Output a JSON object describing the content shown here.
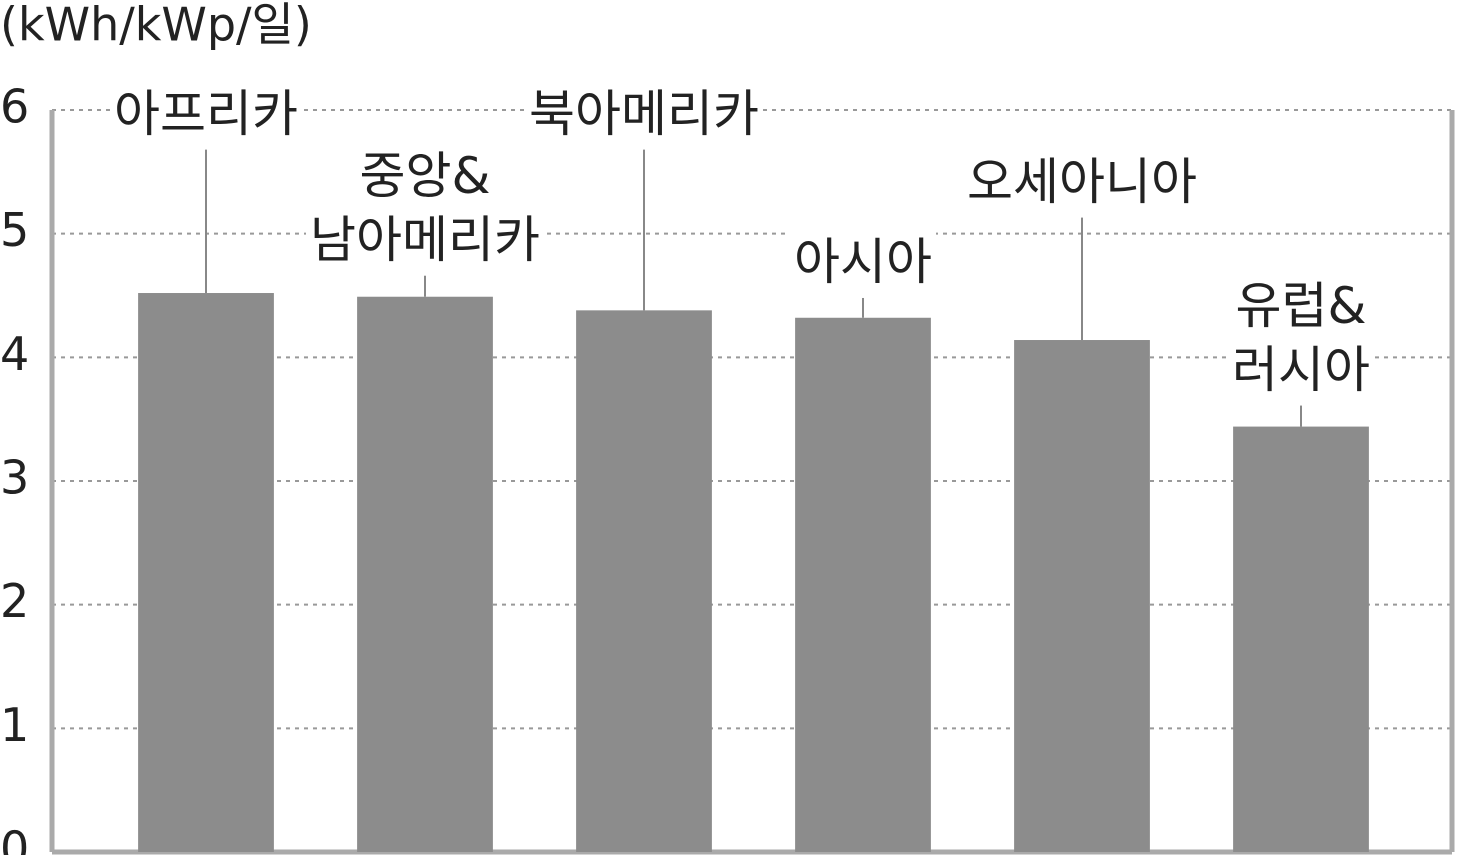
{
  "chart_data": {
    "type": "bar",
    "y_axis_label": "(kWh/kWp/일)",
    "categories": [
      "아프리카",
      "중앙&\n남아메리카",
      "북아메리카",
      "아시아",
      "오세아니아",
      "유럽&\n러시아"
    ],
    "values": [
      4.52,
      4.49,
      4.38,
      4.32,
      4.14,
      3.44
    ],
    "errors": [
      1.16,
      0.17,
      1.3,
      0.16,
      0.99,
      0.17
    ],
    "color": "#8c8c8c",
    "ylim": [
      0,
      6
    ],
    "yticks": [
      0,
      1,
      2,
      3,
      4,
      5,
      6
    ],
    "grid": true
  }
}
